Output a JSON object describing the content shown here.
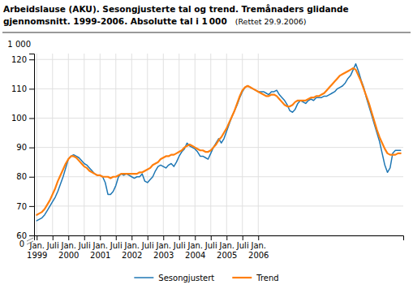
{
  "chart_data": {
    "type": "line",
    "title": "Arbeidslause (AKU). Sesongjusterte tal og trend. Tremånaders glidande\ngjennomsnitt. 1999-2006. Absolutte tal i 1 000",
    "subtitle": "(Rettet 29.9.2006)",
    "ylabel": "1 000",
    "annotations": [
      "0"
    ],
    "categories": [
      "Jan.\n1999",
      null,
      null,
      null,
      null,
      null,
      "Juli",
      null,
      null,
      null,
      null,
      null,
      "Jan.\n2000",
      null,
      null,
      null,
      null,
      null,
      "Juli",
      null,
      null,
      null,
      null,
      null,
      "Jan.\n2001",
      null,
      null,
      null,
      null,
      null,
      "Juli",
      null,
      null,
      null,
      null,
      null,
      "Jan.\n2002",
      null,
      null,
      null,
      null,
      null,
      "Juli",
      null,
      null,
      null,
      null,
      null,
      "Jan.\n2003",
      null,
      null,
      null,
      null,
      null,
      "Juli",
      null,
      null,
      null,
      null,
      null,
      "Jan.\n2004",
      null,
      null,
      null,
      null,
      null,
      "Juli",
      null,
      null,
      null,
      null,
      null,
      "Jan.\n2005",
      null,
      null,
      null,
      null,
      null,
      "Juli",
      null,
      null,
      null,
      null,
      null,
      "Jan.\n2006",
      null,
      null,
      null,
      null,
      null,
      null,
      null,
      null,
      null,
      null,
      null,
      null,
      null,
      null,
      null,
      null,
      null,
      null,
      null,
      null,
      null,
      null,
      null,
      null,
      null,
      null,
      null,
      null,
      null,
      null,
      null,
      null,
      null,
      null,
      null,
      null,
      null,
      null,
      null,
      null,
      null,
      null,
      null,
      null,
      null,
      null,
      null,
      null,
      null,
      null,
      null,
      null,
      null,
      null
    ],
    "series": [
      {
        "name": "Sesongjustert",
        "values": [
          65.0,
          65.5,
          66.0,
          67.0,
          68.5,
          70.0,
          71.5,
          73.0,
          75.0,
          77.5,
          80.0,
          83.0,
          86.0,
          87.0,
          87.5,
          87.0,
          86.5,
          85.5,
          84.5,
          84.0,
          83.0,
          82.0,
          81.0,
          80.5,
          80.5,
          80.0,
          78.0,
          74.0,
          74.0,
          75.0,
          77.0,
          80.0,
          81.0,
          80.5,
          81.0,
          80.5,
          80.0,
          79.5,
          80.0,
          80.0,
          81.0,
          78.5,
          78.0,
          79.0,
          80.0,
          82.0,
          83.5,
          84.0,
          83.5,
          83.0,
          84.0,
          84.5,
          83.5,
          85.0,
          87.0,
          88.5,
          89.5,
          91.5,
          90.5,
          90.0,
          89.5,
          88.5,
          87.0,
          87.0,
          86.5,
          86.0,
          88.0,
          90.0,
          91.5,
          93.0,
          91.5,
          93.0,
          95.5,
          98.0,
          100.5,
          102.5,
          104.5,
          107.0,
          109.0,
          110.5,
          111.0,
          110.5,
          110.0,
          109.5,
          109.0,
          109.0,
          109.0,
          108.5,
          108.0,
          109.0,
          109.0,
          109.5,
          108.0,
          107.0,
          106.0,
          104.5,
          102.5,
          102.0,
          103.0,
          105.0,
          106.0,
          105.5,
          105.0,
          106.0,
          106.5,
          106.0,
          107.0,
          107.0,
          107.0,
          107.5,
          107.5,
          108.0,
          108.5,
          109.0,
          110.0,
          110.5,
          111.0,
          112.0,
          113.5,
          114.5,
          116.5,
          118.5,
          116.0,
          113.0,
          110.5,
          107.0,
          104.0,
          101.0,
          98.0,
          95.0,
          92.0,
          88.0,
          84.0,
          81.5,
          83.0,
          88.0,
          89.0,
          89.0,
          89.0
        ]
      },
      {
        "name": "Trend",
        "values": [
          67.0,
          67.5,
          68.0,
          69.0,
          70.5,
          72.0,
          74.0,
          76.0,
          78.5,
          80.5,
          82.5,
          84.5,
          86.0,
          87.0,
          87.0,
          86.5,
          85.5,
          84.5,
          83.5,
          83.0,
          82.0,
          81.5,
          81.0,
          80.5,
          80.5,
          80.0,
          80.0,
          80.0,
          79.5,
          80.0,
          80.0,
          80.5,
          81.0,
          81.0,
          81.0,
          81.0,
          81.0,
          81.0,
          81.0,
          81.5,
          81.5,
          82.0,
          82.5,
          83.0,
          84.0,
          84.5,
          85.0,
          86.0,
          86.5,
          87.0,
          87.0,
          87.5,
          87.5,
          88.0,
          88.5,
          89.0,
          90.0,
          90.5,
          91.0,
          90.5,
          90.0,
          89.5,
          89.0,
          89.0,
          88.5,
          88.5,
          89.0,
          90.0,
          91.0,
          92.5,
          93.5,
          95.0,
          96.5,
          98.5,
          100.5,
          102.5,
          105.0,
          107.5,
          109.5,
          110.5,
          111.0,
          110.5,
          110.0,
          109.5,
          109.0,
          108.5,
          108.0,
          107.5,
          107.5,
          108.0,
          108.0,
          107.5,
          106.5,
          105.5,
          104.5,
          104.0,
          104.0,
          104.5,
          105.5,
          106.0,
          106.0,
          106.0,
          106.0,
          106.5,
          107.0,
          107.0,
          107.5,
          107.5,
          108.0,
          108.5,
          109.5,
          110.5,
          111.5,
          112.5,
          113.5,
          114.5,
          115.0,
          115.5,
          116.0,
          116.5,
          117.0,
          116.5,
          114.5,
          112.5,
          110.0,
          107.5,
          105.0,
          102.0,
          99.0,
          96.0,
          93.5,
          91.5,
          89.5,
          88.0,
          87.5,
          87.5,
          87.5,
          88.0,
          88.0
        ]
      }
    ],
    "ylim": [
      60,
      122
    ],
    "yticks": [
      60,
      70,
      80,
      90,
      100,
      110,
      120
    ],
    "grid": true,
    "legend": "bottom"
  }
}
